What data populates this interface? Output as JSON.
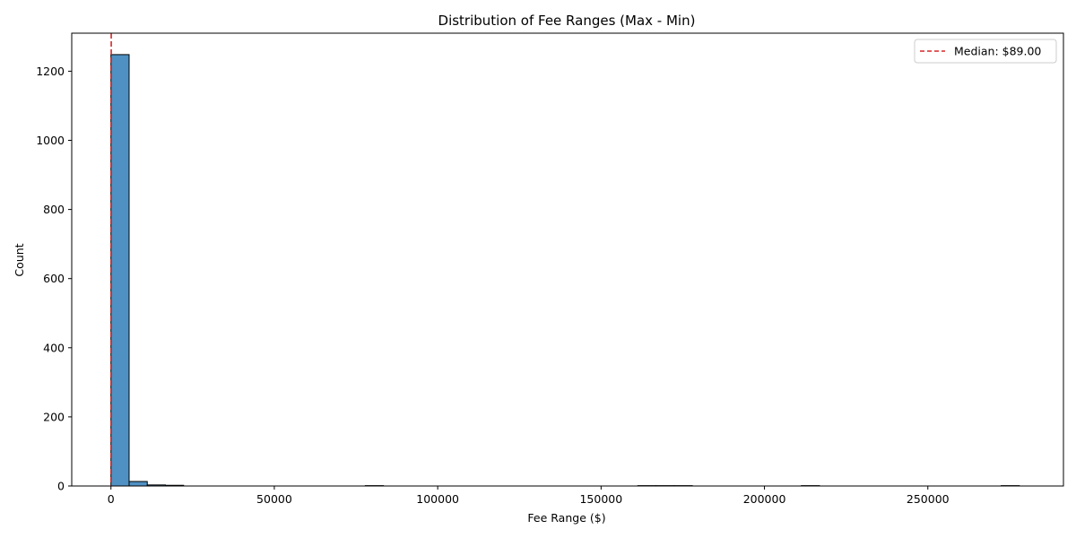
{
  "chart_data": {
    "type": "bar",
    "title": "Distribution of Fee Ranges (Max - Min)",
    "xlabel": "Fee Range ($)",
    "ylabel": "Count",
    "xlim": [
      -12000,
      291500
    ],
    "ylim": [
      0,
      1310
    ],
    "xticks": [
      0,
      50000,
      100000,
      150000,
      200000,
      250000
    ],
    "yticks": [
      0,
      200,
      400,
      600,
      800,
      1000,
      1200
    ],
    "bins": [
      {
        "x0": 0,
        "x1": 5560,
        "count": 1248
      },
      {
        "x0": 5560,
        "x1": 11120,
        "count": 13
      },
      {
        "x0": 11120,
        "x1": 16680,
        "count": 3
      },
      {
        "x0": 16680,
        "x1": 22240,
        "count": 2
      },
      {
        "x0": 77840,
        "x1": 83400,
        "count": 1
      },
      {
        "x0": 161240,
        "x1": 166800,
        "count": 1
      },
      {
        "x0": 166800,
        "x1": 172360,
        "count": 1
      },
      {
        "x0": 172360,
        "x1": 177920,
        "count": 1
      },
      {
        "x0": 211280,
        "x1": 216840,
        "count": 1
      },
      {
        "x0": 272440,
        "x1": 278000,
        "count": 1
      }
    ],
    "median_line": {
      "x": 89,
      "label": "Median: $89.00",
      "color": "#d62728"
    },
    "bar_color": "#4f91c3",
    "edge_color": "#000000",
    "legend_position": "top-right",
    "grid": false
  }
}
